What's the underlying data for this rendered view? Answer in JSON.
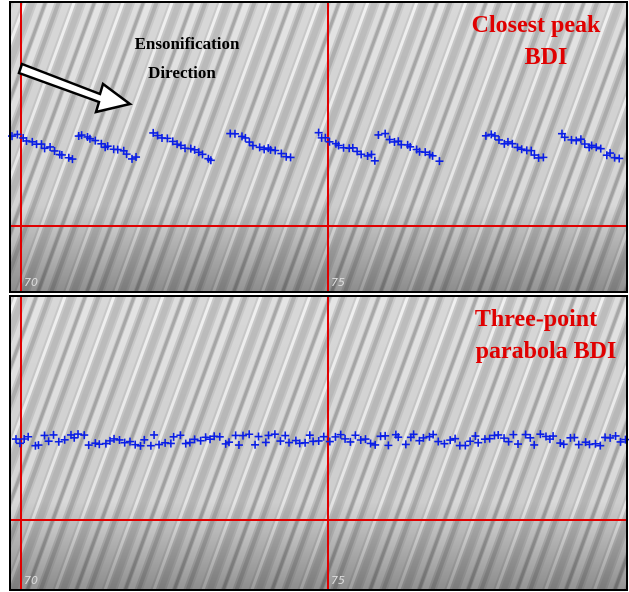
{
  "annotation": {
    "lines": [
      "Ensonification",
      "Direction"
    ]
  },
  "panels": [
    {
      "title": [
        "Closest peak",
        "BDI"
      ],
      "x_labels": [
        "70",
        "75"
      ]
    },
    {
      "title": [
        "Three-point",
        "parabola BDI"
      ],
      "x_labels": [
        "70",
        "75"
      ]
    }
  ]
}
